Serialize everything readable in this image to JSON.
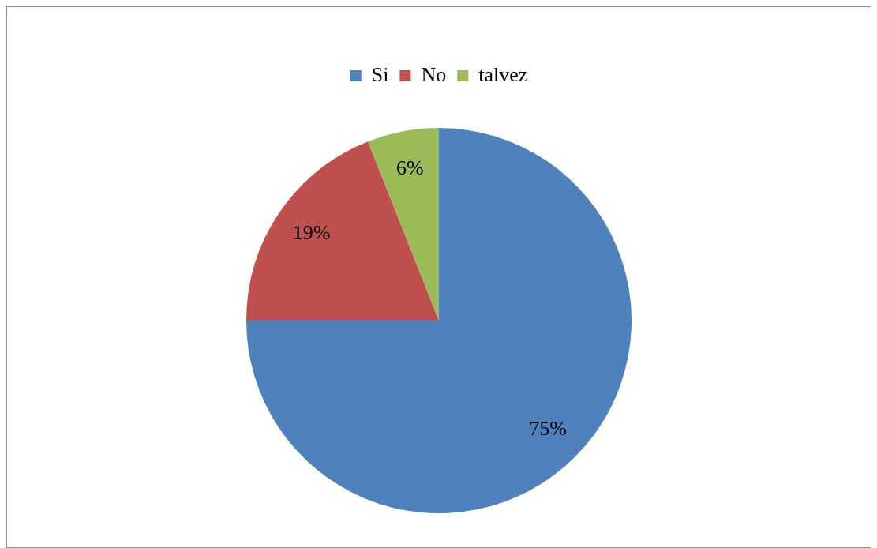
{
  "chart_data": {
    "type": "pie",
    "categories": [
      "Si",
      "No",
      "talvez"
    ],
    "values": [
      75,
      19,
      6
    ],
    "colors": [
      "#4f81bd",
      "#c0504d",
      "#9bbb59"
    ],
    "value_labels": [
      "75%",
      "19%",
      "6%"
    ],
    "legend": "top"
  }
}
